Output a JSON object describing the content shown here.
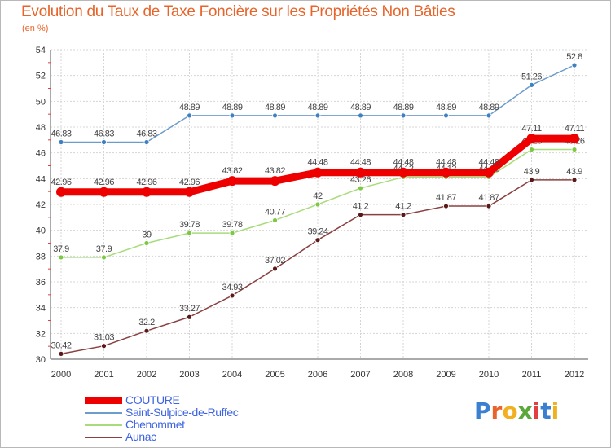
{
  "title": "Evolution du Taux de Taxe Foncière sur les Propriétés Non Bâties",
  "subtitle": "(en %)",
  "logo": {
    "letters": [
      "P",
      "r",
      "o",
      "x",
      "i",
      "t",
      "i"
    ],
    "colors": [
      "#3a7fd0",
      "#e8642a",
      "#f0b020",
      "#5aa83a",
      "#e04040",
      "#3a7fd0",
      "#f0b020"
    ]
  },
  "chart_data": {
    "type": "line",
    "x": [
      "2000",
      "2001",
      "2002",
      "2003",
      "2004",
      "2005",
      "2006",
      "2007",
      "2008",
      "2009",
      "2010",
      "2011",
      "2012"
    ],
    "ylim": [
      30,
      54
    ],
    "yticks": [
      30,
      32,
      34,
      36,
      38,
      40,
      42,
      44,
      46,
      48,
      50,
      52,
      54
    ],
    "grid": true,
    "legend_position": "bottom-left",
    "series": [
      {
        "name": "Saint-Sulpice-de-Ruffec",
        "color": "#6c9ccc",
        "marker": "#3f80c0",
        "values": [
          46.83,
          46.83,
          46.83,
          48.89,
          48.89,
          48.89,
          48.89,
          48.89,
          48.89,
          48.89,
          48.89,
          51.26,
          52.8
        ],
        "labels": [
          "46.83",
          "46.83",
          "46.83",
          "48.89",
          "48.89",
          "48.89",
          "48.89",
          "48.89",
          "48.89",
          "48.89",
          "48.89",
          "51.26",
          "52.8"
        ]
      },
      {
        "name": "Chenommet",
        "color": "#a8dc7a",
        "marker": "#7cc840",
        "values": [
          37.9,
          37.9,
          39,
          39.78,
          39.78,
          40.77,
          42,
          43.26,
          44.12,
          44.12,
          44.12,
          46.26,
          46.26
        ],
        "labels": [
          "37.9",
          "37.9",
          "39",
          "39.78",
          "39.78",
          "40.77",
          "42",
          "43.26",
          "44.12",
          "44.12",
          "44.12",
          "46.26",
          "46.26"
        ]
      },
      {
        "name": "Aunac",
        "color": "#8a4040",
        "marker": "#5a1818",
        "values": [
          30.42,
          31.03,
          32.2,
          33.27,
          34.93,
          37.02,
          39.24,
          41.2,
          41.2,
          41.87,
          41.87,
          43.9,
          43.9
        ],
        "labels": [
          "30.42",
          "31.03",
          "32.2",
          "33.27",
          "34.93",
          "37.02",
          "39.24",
          "41.2",
          "41.2",
          "41.87",
          "41.87",
          "43.9",
          "43.9"
        ]
      },
      {
        "name": "COUTURE",
        "color": "#ee0000",
        "marker": "#ee0000",
        "values": [
          42.96,
          42.96,
          42.96,
          42.96,
          43.82,
          43.82,
          44.48,
          44.48,
          44.48,
          44.48,
          44.48,
          47.11,
          47.11
        ],
        "labels": [
          "42.96",
          "42.96",
          "42.96",
          "42.96",
          "43.82",
          "43.82",
          "44.48",
          "44.48",
          "44.48",
          "44.48",
          "44.48",
          "47.11",
          "47.11"
        ]
      }
    ],
    "legend": [
      {
        "name": "COUTURE",
        "color": "#ee0000",
        "thick": true
      },
      {
        "name": "Saint-Sulpice-de-Ruffec",
        "color": "#6c9ccc"
      },
      {
        "name": "Chenommet",
        "color": "#a8dc7a"
      },
      {
        "name": "Aunac",
        "color": "#8a4040"
      }
    ]
  }
}
